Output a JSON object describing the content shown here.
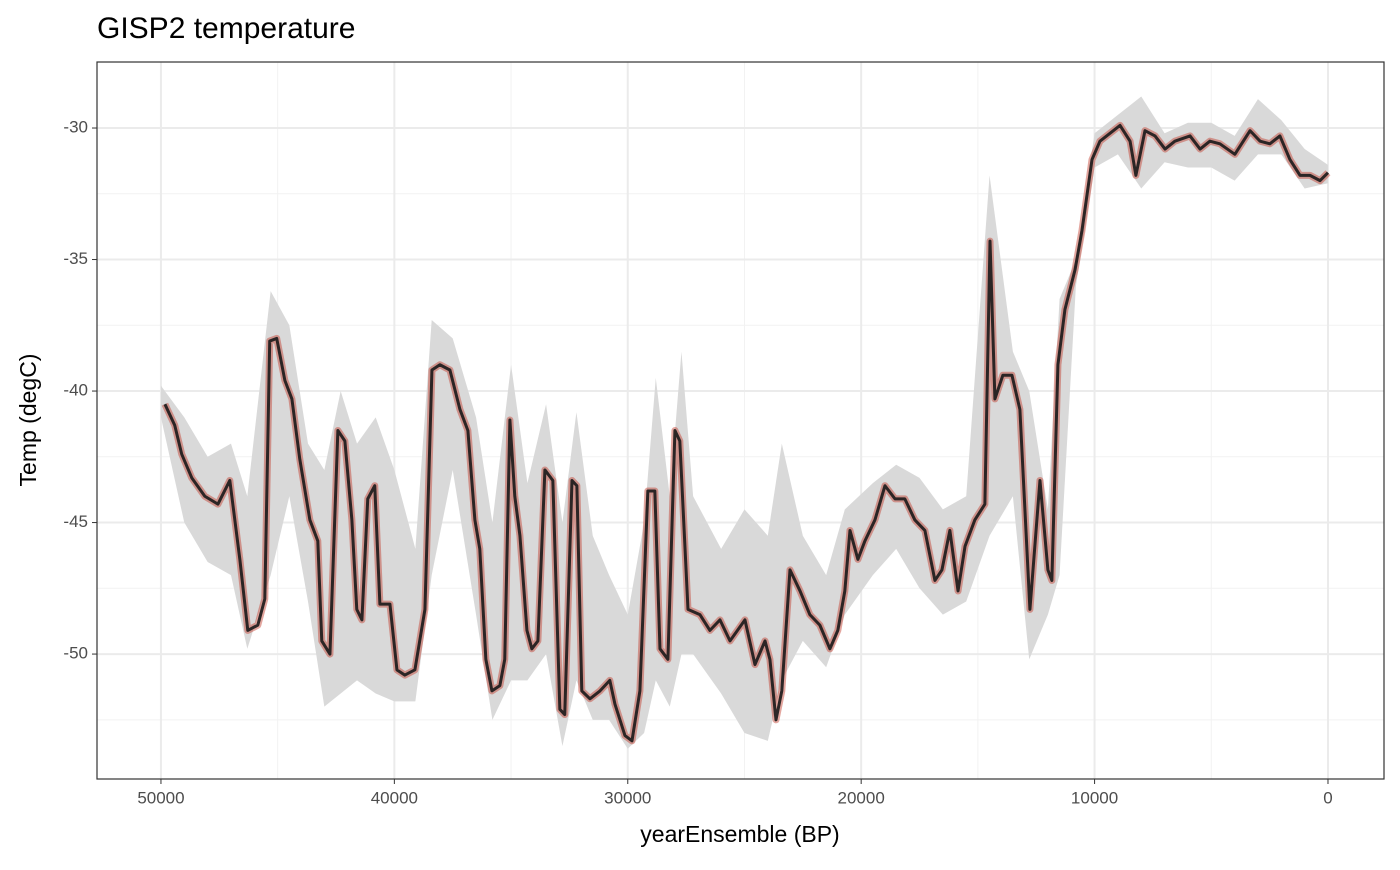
{
  "chart_data": {
    "type": "line",
    "title": "GISP2 temperature",
    "x_label": "yearEnsemble (BP)",
    "y_label": "Temp (degC)",
    "xlim": [
      52740,
      -2400
    ],
    "ylim": [
      -54.75,
      -27.49
    ],
    "xticks": [
      50000,
      40000,
      30000,
      20000,
      10000,
      0
    ],
    "yticks": [
      -30,
      -35,
      -40,
      -45,
      -50
    ],
    "grid": true,
    "color": "#1a1a1a",
    "halo_color": "#c0392b",
    "x": [
      49830,
      49410,
      49110,
      48680,
      48120,
      47560,
      47050,
      46620,
      46280,
      45850,
      45550,
      45340,
      45040,
      44690,
      44390,
      44050,
      43620,
      43280,
      43110,
      42760,
      42420,
      42120,
      41820,
      41610,
      41390,
      41140,
      40840,
      40620,
      40190,
      39890,
      39550,
      39120,
      38690,
      38390,
      38050,
      37620,
      37190,
      36850,
      36550,
      36340,
      36080,
      35820,
      35480,
      35270,
      35050,
      34840,
      34620,
      34320,
      34110,
      33850,
      33550,
      33210,
      32910,
      32700,
      32390,
      32180,
      31970,
      31620,
      31190,
      30770,
      30550,
      30120,
      29820,
      29480,
      29140,
      28840,
      28620,
      28280,
      27980,
      27770,
      27420,
      26910,
      26480,
      26050,
      25620,
      24980,
      24550,
      24120,
      23910,
      23650,
      23400,
      23050,
      22620,
      22200,
      21770,
      21340,
      21000,
      20700,
      20480,
      20140,
      19840,
      19410,
      18980,
      18550,
      18130,
      17700,
      17270,
      16840,
      16540,
      16200,
      15850,
      15550,
      15130,
      14700,
      14480,
      14270,
      13930,
      13540,
      13200,
      12770,
      12340,
      12000,
      11830,
      11570,
      11270,
      10840,
      10540,
      10110,
      9770,
      9340,
      8910,
      8480,
      8230,
      7840,
      7410,
      6980,
      6560,
      5910,
      5480,
      5060,
      4630,
      3990,
      3340,
      2910,
      2490,
      2060,
      1630,
      1200,
      770,
      340,
      0
    ],
    "values": [
      -40.5,
      -41.3,
      -42.4,
      -43.3,
      -44.0,
      -44.3,
      -43.4,
      -46.4,
      -49.1,
      -48.9,
      -47.9,
      -38.1,
      -38.0,
      -39.6,
      -40.3,
      -42.6,
      -44.9,
      -45.7,
      -49.5,
      -50.0,
      -41.5,
      -41.9,
      -44.9,
      -48.3,
      -48.7,
      -44.1,
      -43.6,
      -48.1,
      -48.1,
      -50.6,
      -50.8,
      -50.6,
      -48.3,
      -39.2,
      -39.0,
      -39.2,
      -40.7,
      -41.5,
      -44.9,
      -46.0,
      -50.2,
      -51.4,
      -51.2,
      -50.2,
      -41.1,
      -44.0,
      -45.5,
      -49.1,
      -49.8,
      -49.5,
      -43.0,
      -43.4,
      -52.1,
      -52.3,
      -43.4,
      -43.6,
      -51.4,
      -51.7,
      -51.4,
      -51.0,
      -51.9,
      -53.1,
      -53.3,
      -51.4,
      -43.8,
      -43.8,
      -49.8,
      -50.2,
      -41.5,
      -41.9,
      -48.3,
      -48.5,
      -49.1,
      -48.7,
      -49.5,
      -48.7,
      -50.4,
      -49.5,
      -50.2,
      -52.5,
      -51.4,
      -46.8,
      -47.6,
      -48.5,
      -48.9,
      -49.8,
      -49.1,
      -47.6,
      -45.3,
      -46.4,
      -45.7,
      -44.9,
      -43.6,
      -44.1,
      -44.1,
      -44.9,
      -45.3,
      -47.2,
      -46.8,
      -45.3,
      -47.6,
      -45.9,
      -44.9,
      -44.3,
      -34.3,
      -40.3,
      -39.4,
      -39.4,
      -40.7,
      -48.3,
      -43.4,
      -46.8,
      -47.2,
      -39.0,
      -36.9,
      -35.4,
      -33.9,
      -31.2,
      -30.5,
      -30.2,
      -29.9,
      -30.5,
      -31.8,
      -30.1,
      -30.3,
      -30.8,
      -30.5,
      -30.3,
      -30.8,
      -30.5,
      -30.6,
      -31.0,
      -30.1,
      -30.5,
      -30.6,
      -30.3,
      -31.2,
      -31.8,
      -31.8,
      -32.0,
      -31.7
    ],
    "band": {
      "color": "#d9d9d9",
      "x": [
        50000,
        49000,
        48000,
        47000,
        46300,
        45300,
        44500,
        43700,
        43000,
        42300,
        41600,
        40800,
        40000,
        39100,
        38400,
        37500,
        36500,
        35800,
        35000,
        34300,
        33500,
        32800,
        32200,
        31500,
        30800,
        30000,
        29300,
        28800,
        28200,
        27700,
        27200,
        26000,
        25000,
        24000,
        23400,
        22500,
        21500,
        20700,
        19500,
        18500,
        17500,
        16500,
        15500,
        14500,
        13500,
        12800,
        12000,
        11500,
        10800,
        10000,
        9000,
        8000,
        7000,
        6000,
        5000,
        4000,
        3000,
        2000,
        1000,
        0
      ],
      "upper": [
        -39.8,
        -41,
        -42.5,
        -42,
        -44,
        -36.2,
        -37.5,
        -42,
        -43,
        -40,
        -42,
        -41,
        -43,
        -46,
        -37.3,
        -38,
        -41,
        -45,
        -39,
        -43.5,
        -40.5,
        -45,
        -40.8,
        -45.5,
        -47,
        -48.5,
        -45,
        -39.5,
        -44,
        -38.5,
        -44,
        -46,
        -44.5,
        -45.5,
        -42,
        -45.5,
        -47,
        -44.5,
        -43.5,
        -42.8,
        -43.3,
        -44.5,
        -44,
        -31.8,
        -38.5,
        -40,
        -44.5,
        -36.5,
        -35,
        -30.2,
        -29.5,
        -28.8,
        -30.2,
        -29.8,
        -29.8,
        -30.3,
        -28.9,
        -29.7,
        -30.8,
        -31.4
      ],
      "lower": [
        -41,
        -45,
        -46.5,
        -47,
        -49.8,
        -47,
        -44,
        -48,
        -52,
        -51.5,
        -51,
        -51.5,
        -51.8,
        -51.8,
        -47,
        -43,
        -48.5,
        -52.5,
        -51,
        -51,
        -50,
        -53.5,
        -51,
        -52.5,
        -52.5,
        -53.6,
        -53,
        -51,
        -52,
        -50,
        -50,
        -51.5,
        -53,
        -53.3,
        -51,
        -49.5,
        -50.5,
        -48.5,
        -47,
        -46,
        -47.5,
        -48.5,
        -48,
        -45.5,
        -44,
        -50.2,
        -48.5,
        -47,
        -36,
        -31.5,
        -31,
        -32.3,
        -31.3,
        -31.5,
        -31.5,
        -32,
        -31,
        -31,
        -32.3,
        -32.1
      ]
    }
  }
}
